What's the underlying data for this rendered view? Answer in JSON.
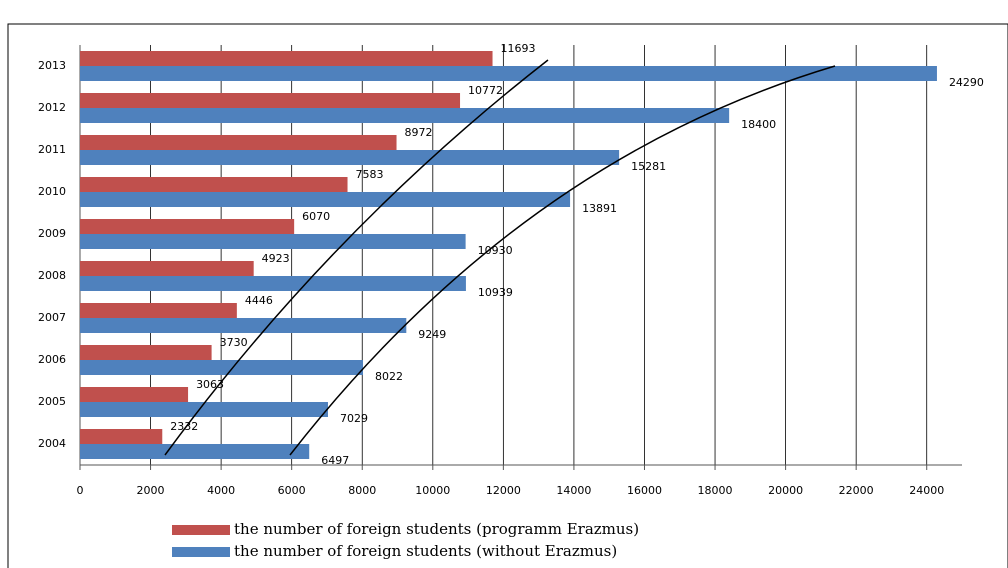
{
  "chart_data": {
    "type": "bar",
    "orientation": "horizontal",
    "categories": [
      "2004",
      "2005",
      "2006",
      "2007",
      "2008",
      "2009",
      "2010",
      "2011",
      "2012",
      "2013"
    ],
    "series": [
      {
        "name": "the number of foreign students (programm Erazmus)",
        "color": "#c0504d",
        "values": [
          2332,
          3063,
          3730,
          4446,
          4923,
          6070,
          7583,
          8972,
          10772,
          11693
        ]
      },
      {
        "name": "the number of foreign students (without Erazmus)",
        "color": "#4f81bd",
        "values": [
          6497,
          7029,
          8022,
          9249,
          10939,
          10930,
          13891,
          15281,
          18400,
          24290
        ]
      }
    ],
    "xlim": [
      0,
      25000
    ],
    "xticks": [
      0,
      2000,
      4000,
      6000,
      8000,
      10000,
      12000,
      14000,
      16000,
      18000,
      20000,
      22000,
      24000
    ],
    "grid": true,
    "legend": "bottom"
  }
}
